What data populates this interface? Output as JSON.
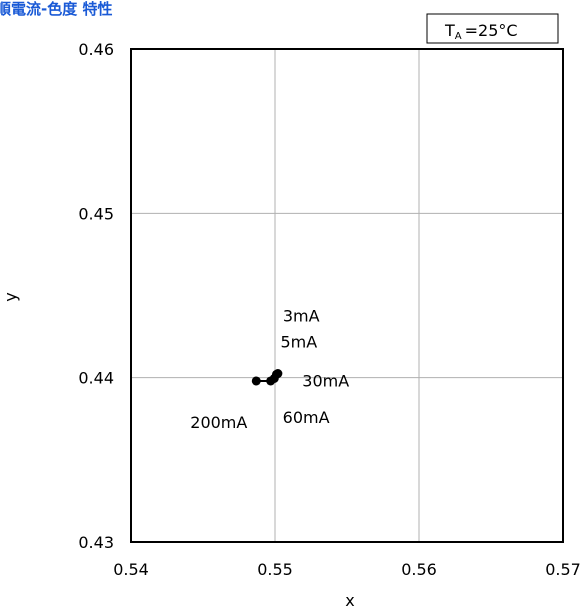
{
  "title": "順電流-色度 特性",
  "chart_data": {
    "type": "scatter",
    "title": "順電流-色度 特性",
    "xlabel": "x",
    "ylabel": "y",
    "xlim": [
      0.54,
      0.57
    ],
    "ylim": [
      0.43,
      0.46
    ],
    "xticks": [
      "0.54",
      "0.55",
      "0.56",
      "0.57"
    ],
    "yticks": [
      "0.46",
      "0.45",
      "0.44",
      "0.43"
    ],
    "grid": true,
    "condition": {
      "main": "T",
      "sub": "A",
      "rest": "=25°C"
    },
    "series": [
      {
        "points": [
          {
            "label": "3mA",
            "x": 0.5502,
            "y": 0.44025
          },
          {
            "label": "5mA",
            "x": 0.5501,
            "y": 0.4402
          },
          {
            "label": "30mA",
            "x": 0.54995,
            "y": 0.43995
          },
          {
            "label": "60mA",
            "x": 0.5497,
            "y": 0.4398
          },
          {
            "label": "200mA",
            "x": 0.5487,
            "y": 0.4398
          }
        ]
      }
    ],
    "colors": {
      "title": "#1a5ad6",
      "marker": "#000000",
      "grid": "#b0b0b0"
    }
  }
}
